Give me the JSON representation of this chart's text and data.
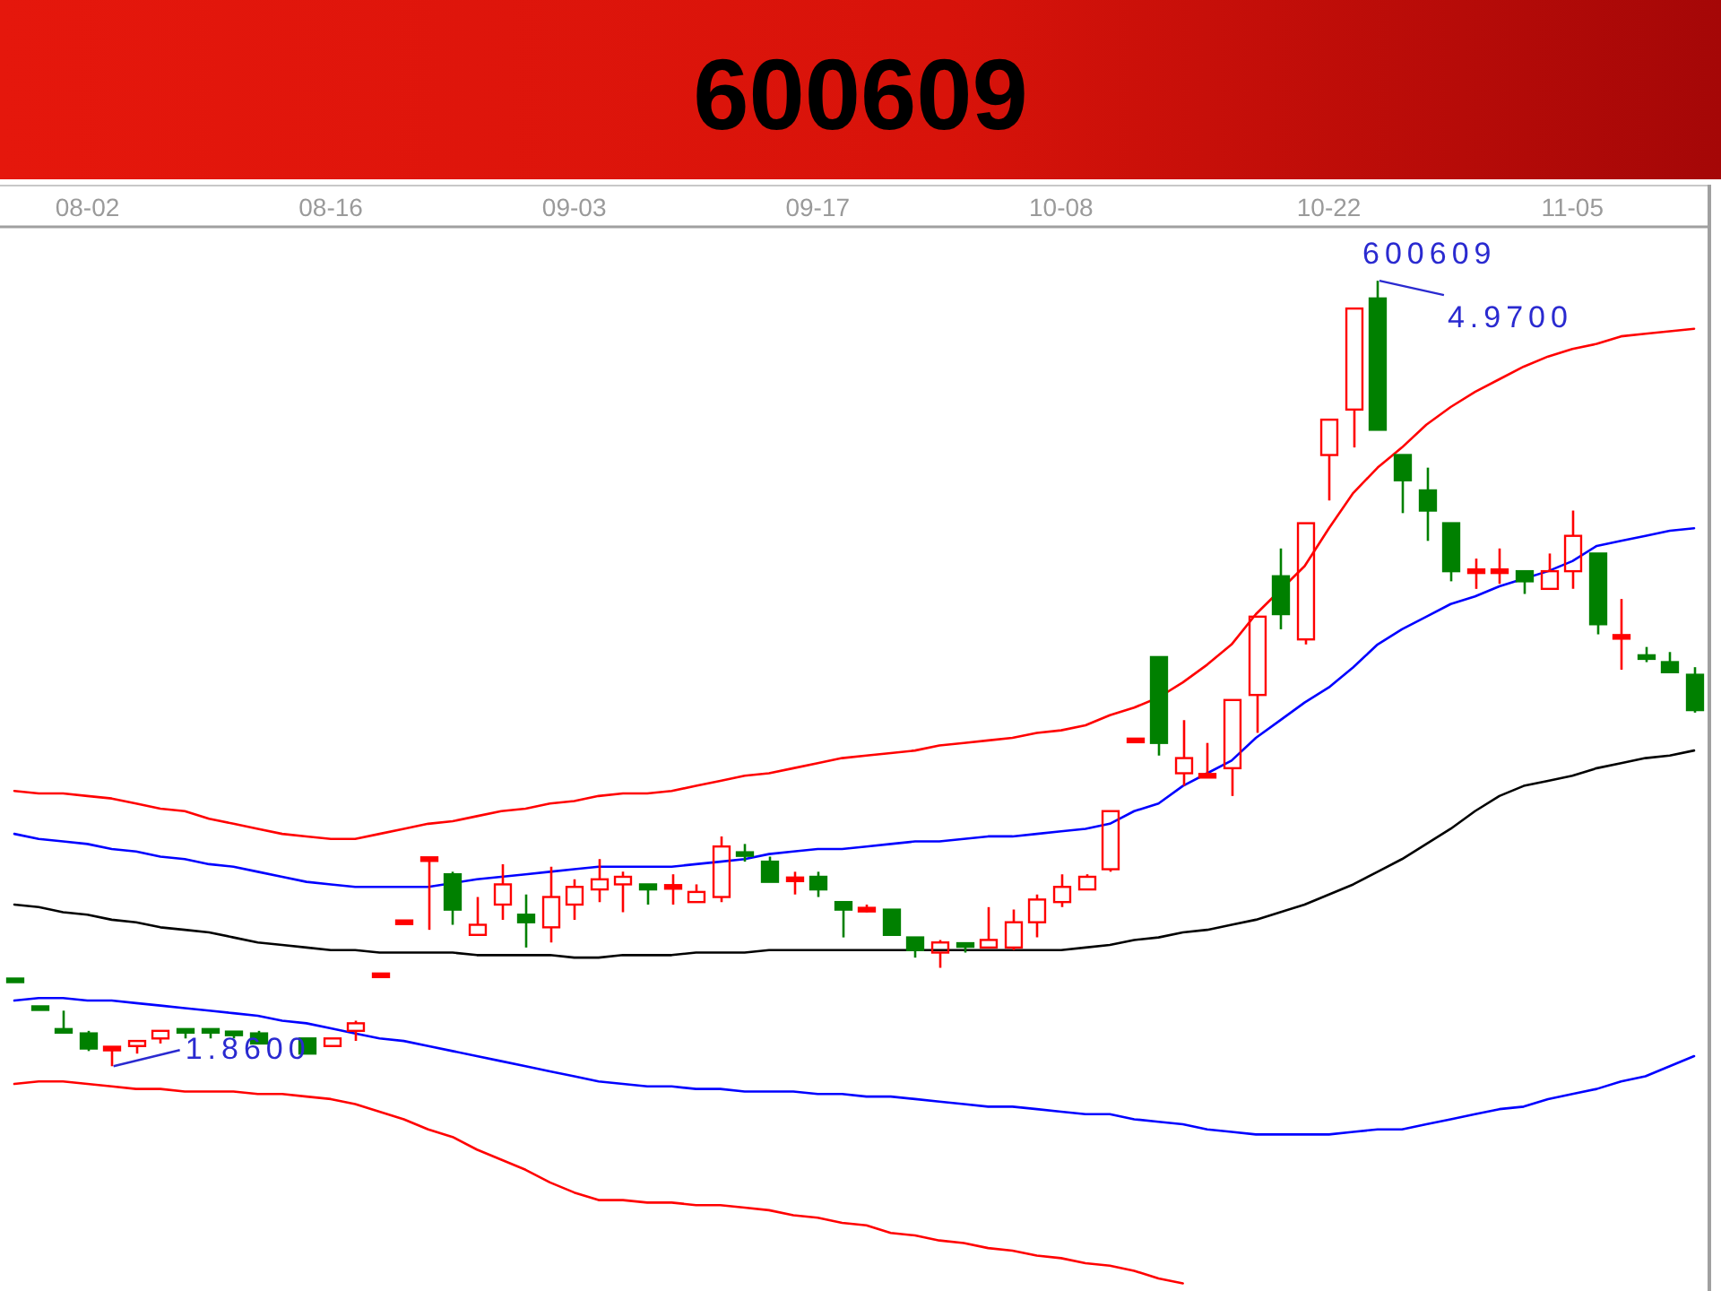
{
  "chart_data": {
    "type": "candlestick",
    "title": "600609",
    "tick_labels": "x",
    "ylim": [
      0.97,
      5.18
    ],
    "categories": [
      null,
      null,
      null,
      "08-02",
      null,
      null,
      null,
      null,
      null,
      null,
      null,
      null,
      null,
      "08-16",
      null,
      null,
      null,
      null,
      null,
      null,
      null,
      null,
      null,
      "09-03",
      null,
      null,
      null,
      null,
      null,
      null,
      null,
      null,
      null,
      "09-17",
      null,
      null,
      null,
      null,
      null,
      null,
      null,
      null,
      null,
      "10-08",
      null,
      null,
      null,
      null,
      null,
      null,
      null,
      null,
      null,
      null,
      "10-22",
      null,
      null,
      null,
      null,
      null,
      null,
      null,
      null,
      null,
      "11-05",
      null,
      null,
      null,
      null,
      null
    ],
    "ohlc": [
      [
        2.2,
        2.2,
        2.2,
        2.2
      ],
      [
        2.09,
        2.09,
        2.09,
        2.09
      ],
      [
        2.0,
        2.08,
        2.0,
        2.0
      ],
      [
        1.99,
        2.0,
        1.92,
        1.93
      ],
      [
        1.93,
        1.93,
        1.86,
        1.93
      ],
      [
        1.94,
        1.96,
        1.91,
        1.96
      ],
      [
        1.97,
        2.0,
        1.95,
        2.0
      ],
      [
        2.0,
        2.0,
        1.97,
        2.0
      ],
      [
        2.0,
        2.0,
        1.97,
        2.0
      ],
      [
        1.99,
        1.99,
        1.97,
        1.99
      ],
      [
        1.99,
        2.0,
        1.95,
        1.95
      ],
      null,
      [
        1.97,
        1.97,
        1.91,
        1.91
      ],
      [
        1.94,
        1.97,
        1.94,
        1.97
      ],
      [
        2.0,
        2.04,
        1.96,
        2.03
      ],
      [
        2.22,
        2.22,
        2.22,
        2.22
      ],
      [
        2.43,
        2.43,
        2.43,
        2.43
      ],
      [
        2.68,
        2.68,
        2.4,
        2.68
      ],
      [
        2.62,
        2.63,
        2.42,
        2.48
      ],
      [
        2.38,
        2.53,
        2.38,
        2.42
      ],
      [
        2.5,
        2.66,
        2.44,
        2.58
      ],
      [
        2.46,
        2.54,
        2.33,
        2.43
      ],
      [
        2.41,
        2.65,
        2.35,
        2.53
      ],
      [
        2.5,
        2.6,
        2.44,
        2.57
      ],
      [
        2.56,
        2.68,
        2.51,
        2.6
      ],
      [
        2.58,
        2.63,
        2.47,
        2.61
      ],
      [
        2.58,
        2.58,
        2.5,
        2.56
      ],
      [
        2.57,
        2.62,
        2.5,
        2.57
      ],
      [
        2.51,
        2.58,
        2.51,
        2.55
      ],
      [
        2.53,
        2.77,
        2.51,
        2.73
      ],
      [
        2.7,
        2.74,
        2.67,
        2.7
      ],
      [
        2.67,
        2.69,
        2.59,
        2.59
      ],
      [
        2.6,
        2.63,
        2.54,
        2.6
      ],
      [
        2.61,
        2.63,
        2.53,
        2.56
      ],
      [
        2.51,
        2.51,
        2.37,
        2.48
      ],
      [
        2.48,
        2.5,
        2.47,
        2.48
      ],
      [
        2.48,
        2.48,
        2.38,
        2.38
      ],
      [
        2.37,
        2.37,
        2.29,
        2.32
      ],
      [
        2.31,
        2.36,
        2.25,
        2.35
      ],
      [
        2.34,
        2.34,
        2.31,
        2.34
      ],
      [
        2.33,
        2.49,
        2.33,
        2.36
      ],
      [
        2.33,
        2.48,
        2.32,
        2.43
      ],
      [
        2.43,
        2.54,
        2.37,
        2.52
      ],
      [
        2.51,
        2.62,
        2.49,
        2.57
      ],
      [
        2.56,
        2.62,
        2.56,
        2.61
      ],
      [
        2.64,
        2.87,
        2.63,
        2.87
      ],
      [
        3.15,
        3.15,
        3.15,
        3.15
      ],
      [
        3.48,
        3.48,
        3.09,
        3.14
      ],
      [
        3.02,
        3.23,
        2.97,
        3.08
      ],
      [
        3.01,
        3.14,
        3.01,
        3.01
      ],
      [
        3.04,
        3.31,
        2.93,
        3.31
      ],
      [
        3.33,
        3.64,
        3.18,
        3.64
      ],
      [
        3.8,
        3.91,
        3.59,
        3.65
      ],
      [
        3.55,
        4.01,
        3.53,
        4.01
      ],
      [
        4.28,
        4.42,
        4.1,
        4.42
      ],
      [
        4.46,
        4.86,
        4.31,
        4.86
      ],
      [
        4.9,
        4.97,
        4.38,
        4.38
      ],
      [
        4.28,
        4.28,
        4.05,
        4.18
      ],
      [
        4.14,
        4.23,
        3.94,
        4.06
      ],
      [
        4.01,
        4.01,
        3.78,
        3.82
      ],
      [
        3.82,
        3.87,
        3.75,
        3.82
      ],
      [
        3.82,
        3.91,
        3.77,
        3.82
      ],
      [
        3.82,
        3.82,
        3.73,
        3.78
      ],
      [
        3.75,
        3.89,
        3.75,
        3.82
      ],
      [
        3.82,
        4.06,
        3.75,
        3.96
      ],
      [
        3.89,
        3.89,
        3.57,
        3.61
      ],
      [
        3.56,
        3.71,
        3.43,
        3.56
      ],
      [
        3.48,
        3.52,
        3.46,
        3.48
      ],
      [
        3.46,
        3.5,
        3.42,
        3.42
      ],
      [
        3.41,
        3.44,
        3.26,
        3.27
      ]
    ],
    "colors": [
      "#008000",
      "#008000",
      "#008000",
      "#008000",
      "#ff0000",
      "#ff0000",
      "#ff0000",
      "#008000",
      "#008000",
      "#008000",
      "#008000",
      null,
      "#008000",
      "#ff0000",
      "#ff0000",
      "#ff0000",
      "#ff0000",
      "#ff0000",
      "#008000",
      "#ff0000",
      "#ff0000",
      "#008000",
      "#ff0000",
      "#ff0000",
      "#ff0000",
      "#ff0000",
      "#008000",
      "#ff0000",
      "#ff0000",
      "#ff0000",
      "#008000",
      "#008000",
      "#ff0000",
      "#008000",
      "#008000",
      "#ff0000",
      "#008000",
      "#008000",
      "#ff0000",
      "#008000",
      "#ff0000",
      "#ff0000",
      "#ff0000",
      "#ff0000",
      "#ff0000",
      "#ff0000",
      "#ff0000",
      "#008000",
      "#ff0000",
      "#ff0000",
      "#ff0000",
      "#ff0000",
      "#008000",
      "#ff0000",
      "#ff0000",
      "#ff0000",
      "#008000",
      "#008000",
      "#008000",
      "#008000",
      "#ff0000",
      "#ff0000",
      "#008000",
      "#ff0000",
      "#ff0000",
      "#008000",
      "#ff0000",
      "#008000",
      "#008000",
      "#008000"
    ],
    "series": [
      {
        "type": "line",
        "color": "#ff0000",
        "values": [
          2.95,
          2.94,
          2.94,
          2.93,
          2.92,
          2.9,
          2.88,
          2.87,
          2.84,
          2.82,
          2.8,
          2.78,
          2.77,
          2.76,
          2.76,
          2.78,
          2.8,
          2.82,
          2.83,
          2.85,
          2.87,
          2.88,
          2.9,
          2.91,
          2.93,
          2.94,
          2.94,
          2.95,
          2.97,
          2.99,
          3.01,
          3.02,
          3.04,
          3.06,
          3.08,
          3.09,
          3.1,
          3.11,
          3.13,
          3.14,
          3.15,
          3.16,
          3.18,
          3.19,
          3.21,
          3.25,
          3.28,
          3.32,
          3.38,
          3.45,
          3.53,
          3.65,
          null,
          3.84,
          3.99,
          4.13,
          4.23,
          4.31,
          4.4,
          4.47,
          4.53,
          4.58,
          4.63,
          4.67,
          4.7,
          4.72,
          4.75,
          4.76,
          4.77,
          4.78
        ]
      },
      {
        "type": "line",
        "color": "#0000ff",
        "values": [
          2.78,
          2.76,
          2.75,
          2.74,
          2.72,
          2.71,
          2.69,
          2.68,
          2.66,
          2.65,
          2.63,
          2.61,
          2.59,
          2.58,
          2.57,
          2.57,
          2.57,
          2.57,
          null,
          2.6,
          2.61,
          2.62,
          2.63,
          2.64,
          2.65,
          2.65,
          2.65,
          2.65,
          2.66,
          2.67,
          2.68,
          2.7,
          2.71,
          2.72,
          2.72,
          2.73,
          2.74,
          2.75,
          2.75,
          2.76,
          2.77,
          2.77,
          2.78,
          2.79,
          2.8,
          2.82,
          2.87,
          2.9,
          2.97,
          3.02,
          3.07,
          3.16,
          3.23,
          3.3,
          3.36,
          3.44,
          3.53,
          3.59,
          3.64,
          3.69,
          3.72,
          3.76,
          3.79,
          3.82,
          3.86,
          3.92,
          3.94,
          3.96,
          3.98,
          3.99
        ]
      },
      {
        "type": "line",
        "color": "#000000",
        "values": [
          2.5,
          2.49,
          2.47,
          2.46,
          2.44,
          2.43,
          2.41,
          2.4,
          2.39,
          2.37,
          2.35,
          2.34,
          2.33,
          2.32,
          2.32,
          2.31,
          2.31,
          2.31,
          2.31,
          2.3,
          2.3,
          2.3,
          2.3,
          2.29,
          2.29,
          2.3,
          2.3,
          2.3,
          2.31,
          2.31,
          2.31,
          2.32,
          2.32,
          2.32,
          2.32,
          2.32,
          2.32,
          2.32,
          2.32,
          2.32,
          2.32,
          2.32,
          2.32,
          2.32,
          2.33,
          2.34,
          2.36,
          2.37,
          2.39,
          2.4,
          2.42,
          2.44,
          2.47,
          2.5,
          2.54,
          2.58,
          2.63,
          2.68,
          2.74,
          2.8,
          2.87,
          2.93,
          2.97,
          2.99,
          3.01,
          3.04,
          3.06,
          3.08,
          3.09,
          3.11
        ]
      },
      {
        "type": "line",
        "color": "#0000ff",
        "values": [
          2.12,
          2.13,
          2.13,
          2.12,
          2.12,
          2.11,
          2.1,
          2.09,
          2.08,
          2.07,
          2.06,
          2.04,
          2.03,
          2.01,
          1.99,
          1.97,
          1.96,
          1.94,
          1.92,
          1.9,
          1.88,
          1.86,
          1.84,
          1.82,
          1.8,
          1.79,
          1.78,
          1.78,
          1.77,
          1.77,
          1.76,
          1.76,
          1.76,
          1.75,
          1.75,
          1.74,
          1.74,
          1.73,
          1.72,
          1.71,
          1.7,
          1.7,
          1.69,
          1.68,
          1.67,
          1.67,
          1.65,
          1.64,
          1.63,
          1.61,
          1.6,
          1.59,
          1.59,
          1.59,
          1.59,
          1.6,
          1.61,
          1.61,
          1.63,
          1.65,
          1.67,
          1.69,
          1.7,
          1.73,
          1.75,
          1.77,
          1.8,
          1.82,
          1.86,
          1.9
        ]
      },
      {
        "type": "line",
        "color": "#ff0000",
        "values": [
          1.79,
          1.8,
          1.8,
          1.79,
          1.78,
          1.77,
          1.77,
          1.76,
          1.76,
          1.76,
          1.75,
          1.75,
          1.74,
          1.73,
          1.71,
          1.68,
          1.65,
          1.61,
          1.58,
          1.53,
          1.49,
          1.45,
          1.4,
          1.36,
          1.33,
          1.33,
          1.32,
          1.32,
          1.31,
          1.31,
          1.3,
          1.29,
          1.27,
          1.26,
          1.24,
          1.23,
          1.2,
          1.19,
          1.17,
          1.16,
          1.14,
          1.13,
          1.11,
          1.1,
          1.08,
          1.07,
          1.05,
          1.02,
          1.0,
          null,
          null,
          null,
          null,
          null,
          null,
          null,
          null,
          null,
          null,
          null,
          null,
          null,
          null,
          null,
          null,
          null,
          null,
          null,
          null,
          null
        ]
      }
    ],
    "annotations": [
      "4.9700",
      "1.8600",
      "600609"
    ]
  }
}
